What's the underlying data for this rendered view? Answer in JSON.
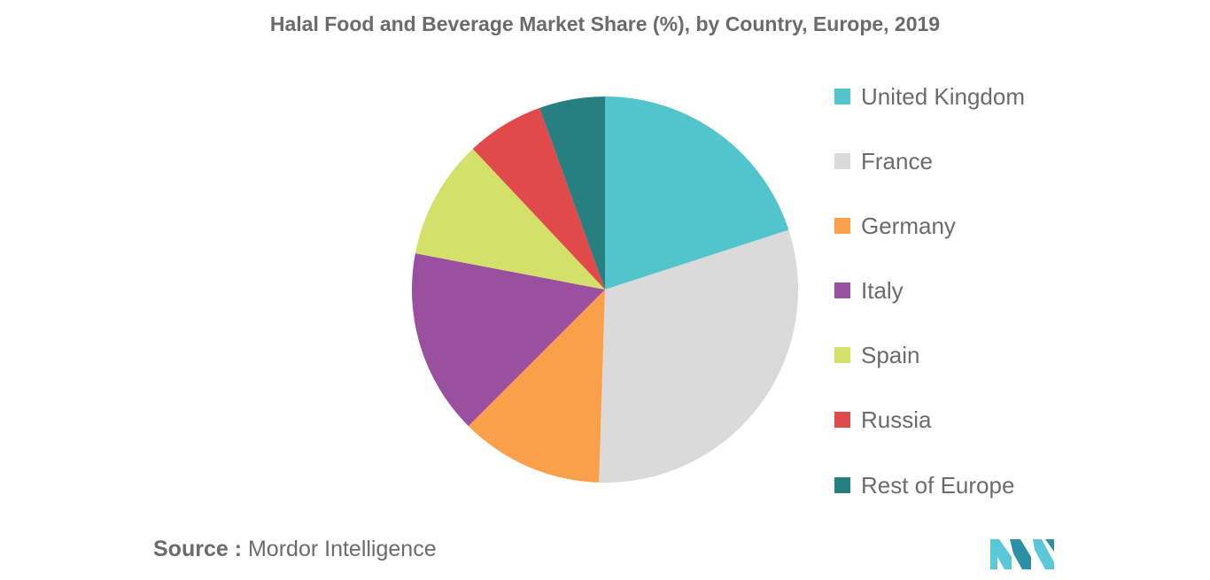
{
  "title": "Halal Food and Beverage Market Share (%), by Country, Europe, 2019",
  "source": {
    "label": "Source :",
    "value": "Mordor Intelligence"
  },
  "logo": {
    "icon": "mordor-intelligence-logo-icon",
    "colors": [
      "#5bc8d9",
      "#2c8fa8"
    ]
  },
  "chart_data": {
    "type": "pie",
    "title": "Halal Food and Beverage Market Share (%), by Country, Europe, 2019",
    "start_angle": "12 o'clock, clockwise",
    "legend_position": "right",
    "slices": [
      {
        "label": "United Kingdom",
        "value": 20.0,
        "color": "#52c5cc"
      },
      {
        "label": "France",
        "value": 30.5,
        "color": "#dadada"
      },
      {
        "label": "Germany",
        "value": 12.0,
        "color": "#fba04a"
      },
      {
        "label": "Italy",
        "value": 15.5,
        "color": "#9b4f9f"
      },
      {
        "label": "Spain",
        "value": 10.0,
        "color": "#d3e16a"
      },
      {
        "label": "Russia",
        "value": 6.5,
        "color": "#e04a4a"
      },
      {
        "label": "Rest of Europe",
        "value": 5.5,
        "color": "#267f81"
      }
    ]
  }
}
